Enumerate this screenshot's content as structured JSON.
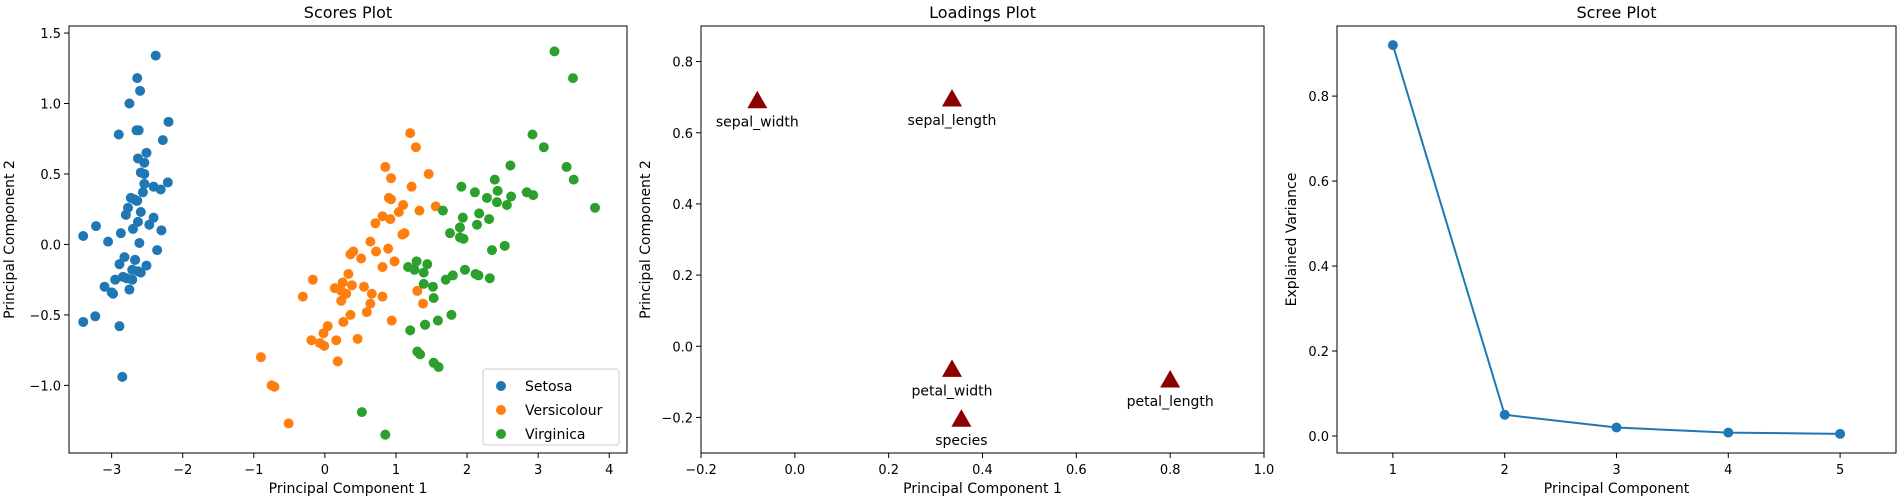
{
  "chart_data": [
    {
      "type": "scatter",
      "title": "Scores Plot",
      "xlabel": "Principal Component 1",
      "ylabel": "Principal Component 2",
      "xlim": [
        -3.6,
        4.25
      ],
      "ylim": [
        -1.48,
        1.55
      ],
      "xticks": [
        -3,
        -2,
        -1,
        0,
        1,
        2,
        3,
        4
      ],
      "xtick_labels": [
        "−3",
        "−2",
        "−1",
        "0",
        "1",
        "2",
        "3",
        "4"
      ],
      "yticks": [
        -1.0,
        -0.5,
        0.0,
        0.5,
        1.0,
        1.5
      ],
      "ytick_labels": [
        "−1.0",
        "−0.5",
        "0.0",
        "0.5",
        "1.0",
        "1.5"
      ],
      "legend_position": "bottom-right",
      "series": [
        {
          "name": "Setosa",
          "color": "#1f77b4",
          "points": [
            [
              -2.68,
              0.32
            ],
            [
              -2.71,
              -0.18
            ],
            [
              -2.89,
              -0.14
            ],
            [
              -2.75,
              -0.32
            ],
            [
              -2.73,
              0.33
            ],
            [
              -2.28,
              0.74
            ],
            [
              -2.82,
              -0.09
            ],
            [
              -2.63,
              0.16
            ],
            [
              -2.89,
              -0.58
            ],
            [
              -2.67,
              -0.11
            ],
            [
              -2.51,
              0.65
            ],
            [
              -2.61,
              0.01
            ],
            [
              -2.79,
              -0.24
            ],
            [
              -3.23,
              -0.51
            ],
            [
              -2.64,
              1.18
            ],
            [
              -2.38,
              1.34
            ],
            [
              -2.62,
              0.81
            ],
            [
              -2.65,
              0.31
            ],
            [
              -2.2,
              0.87
            ],
            [
              -2.59,
              0.51
            ],
            [
              -2.31,
              0.39
            ],
            [
              -2.54,
              0.43
            ],
            [
              -3.22,
              0.13
            ],
            [
              -2.3,
              0.1
            ],
            [
              -2.36,
              -0.04
            ],
            [
              -2.51,
              -0.15
            ],
            [
              -2.47,
              0.14
            ],
            [
              -2.56,
              0.37
            ],
            [
              -2.64,
              0.31
            ],
            [
              -2.63,
              -0.19
            ],
            [
              -2.59,
              -0.2
            ],
            [
              -2.41,
              0.41
            ],
            [
              -2.65,
              0.81
            ],
            [
              -2.6,
              1.09
            ],
            [
              -2.67,
              -0.11
            ],
            [
              -2.87,
              0.08
            ],
            [
              -2.63,
              0.61
            ],
            [
              -2.8,
              0.21
            ],
            [
              -2.98,
              -0.35
            ],
            [
              -2.59,
              0.23
            ],
            [
              -2.77,
              0.26
            ],
            [
              -2.85,
              -0.94
            ],
            [
              -3.0,
              -0.34
            ],
            [
              -2.41,
              0.19
            ],
            [
              -2.21,
              0.44
            ],
            [
              -2.71,
              -0.25
            ],
            [
              -2.54,
              0.5
            ],
            [
              -2.84,
              -0.23
            ],
            [
              -2.54,
              0.58
            ],
            [
              -2.7,
              0.11
            ],
            [
              -3.4,
              -0.55
            ],
            [
              -3.4,
              0.06
            ],
            [
              -2.9,
              0.78
            ],
            [
              -2.75,
              1.0
            ],
            [
              -3.05,
              0.02
            ],
            [
              -3.1,
              -0.3
            ],
            [
              -2.95,
              -0.25
            ]
          ]
        },
        {
          "name": "Versicolour",
          "color": "#ff7f0e",
          "points": [
            [
              1.28,
              0.69
            ],
            [
              0.93,
              0.32
            ],
            [
              1.46,
              0.5
            ],
            [
              0.18,
              -0.83
            ],
            [
              1.09,
              0.07
            ],
            [
              0.64,
              -0.42
            ],
            [
              1.1,
              0.28
            ],
            [
              -0.75,
              -1.0
            ],
            [
              1.04,
              0.23
            ],
            [
              -0.01,
              -0.72
            ],
            [
              -0.51,
              -1.27
            ],
            [
              0.51,
              -0.1
            ],
            [
              0.26,
              -0.55
            ],
            [
              0.98,
              -0.12
            ],
            [
              -0.17,
              -0.25
            ],
            [
              0.93,
              0.47
            ],
            [
              0.66,
              -0.35
            ],
            [
              0.23,
              -0.33
            ],
            [
              0.94,
              -0.54
            ],
            [
              0.04,
              -0.58
            ],
            [
              1.12,
              0.08
            ],
            [
              0.36,
              -0.07
            ],
            [
              1.3,
              -0.33
            ],
            [
              0.92,
              0.18
            ],
            [
              0.71,
              0.15
            ],
            [
              0.9,
              0.33
            ],
            [
              1.33,
              0.24
            ],
            [
              1.56,
              0.27
            ],
            [
              0.81,
              -0.16
            ],
            [
              -0.31,
              -0.37
            ],
            [
              -0.07,
              -0.7
            ],
            [
              -0.19,
              -0.68
            ],
            [
              0.14,
              -0.31
            ],
            [
              1.38,
              -0.42
            ],
            [
              0.59,
              -0.48
            ],
            [
              0.81,
              0.2
            ],
            [
              1.22,
              0.41
            ],
            [
              0.81,
              -0.37
            ],
            [
              0.25,
              -0.27
            ],
            [
              0.16,
              -0.68
            ],
            [
              0.46,
              -0.67
            ],
            [
              0.89,
              -0.03
            ],
            [
              0.23,
              -0.4
            ],
            [
              -0.71,
              -1.01
            ],
            [
              0.36,
              -0.5
            ],
            [
              0.33,
              -0.21
            ],
            [
              0.38,
              -0.29
            ],
            [
              0.64,
              0.02
            ],
            [
              -0.9,
              -0.8
            ],
            [
              0.3,
              -0.35
            ],
            [
              1.2,
              0.79
            ],
            [
              0.85,
              0.55
            ],
            [
              0.4,
              -0.05
            ],
            [
              -0.02,
              -0.63
            ],
            [
              0.55,
              -0.3
            ],
            [
              0.72,
              -0.05
            ]
          ]
        },
        {
          "name": "Virginica",
          "color": "#2ca02c",
          "points": [
            [
              2.53,
              -0.01
            ],
            [
              1.41,
              -0.57
            ],
            [
              2.62,
              0.34
            ],
            [
              1.97,
              -0.18
            ],
            [
              2.35,
              -0.04
            ],
            [
              3.4,
              0.55
            ],
            [
              0.52,
              -1.19
            ],
            [
              2.93,
              0.35
            ],
            [
              2.32,
              -0.24
            ],
            [
              2.92,
              0.78
            ],
            [
              1.66,
              0.24
            ],
            [
              1.8,
              -0.22
            ],
            [
              2.17,
              0.22
            ],
            [
              1.34,
              -0.78
            ],
            [
              1.59,
              -0.54
            ],
            [
              1.9,
              0.12
            ],
            [
              1.95,
              0.04
            ],
            [
              3.49,
              1.18
            ],
            [
              3.8,
              0.26
            ],
            [
              1.3,
              -0.76
            ],
            [
              2.43,
              0.38
            ],
            [
              1.2,
              -0.61
            ],
            [
              3.5,
              0.46
            ],
            [
              1.39,
              -0.2
            ],
            [
              2.28,
              0.33
            ],
            [
              2.61,
              0.56
            ],
            [
              1.26,
              -0.18
            ],
            [
              1.29,
              -0.12
            ],
            [
              2.12,
              -0.21
            ],
            [
              2.39,
              0.46
            ],
            [
              2.84,
              0.37
            ],
            [
              3.23,
              1.37
            ],
            [
              2.16,
              -0.22
            ],
            [
              1.44,
              -0.14
            ],
            [
              1.78,
              -0.5
            ],
            [
              3.08,
              0.69
            ],
            [
              2.14,
              0.14
            ],
            [
              1.9,
              0.05
            ],
            [
              1.17,
              -0.16
            ],
            [
              2.11,
              0.37
            ],
            [
              2.31,
              0.18
            ],
            [
              1.92,
              0.41
            ],
            [
              1.41,
              -0.57
            ],
            [
              2.56,
              0.28
            ],
            [
              2.42,
              0.3
            ],
            [
              1.94,
              0.19
            ],
            [
              1.53,
              -0.38
            ],
            [
              1.76,
              0.08
            ],
            [
              1.9,
              0.12
            ],
            [
              1.39,
              -0.28
            ],
            [
              0.85,
              -1.35
            ],
            [
              1.52,
              -0.3
            ],
            [
              1.6,
              -0.87
            ],
            [
              1.53,
              -0.84
            ],
            [
              1.7,
              -0.25
            ]
          ]
        }
      ]
    },
    {
      "type": "scatter",
      "title": "Loadings Plot",
      "xlabel": "Principal Component 1",
      "ylabel": "Principal Component 2",
      "xlim": [
        -0.2,
        1.0
      ],
      "ylim": [
        -0.3,
        0.9
      ],
      "xticks": [
        -0.2,
        0.0,
        0.2,
        0.4,
        0.6,
        0.8,
        1.0
      ],
      "xtick_labels": [
        "−0.2",
        "0.0",
        "0.2",
        "0.4",
        "0.6",
        "0.8",
        "1.0"
      ],
      "yticks": [
        -0.2,
        0.0,
        0.2,
        0.4,
        0.6,
        0.8
      ],
      "ytick_labels": [
        "−0.2",
        "0.0",
        "0.2",
        "0.4",
        "0.6",
        "0.8"
      ],
      "marker": "triangle",
      "color": "#8b0000",
      "points": [
        {
          "label": "sepal_width",
          "x": -0.08,
          "y": 0.69
        },
        {
          "label": "sepal_length",
          "x": 0.335,
          "y": 0.695
        },
        {
          "label": "petal_width",
          "x": 0.335,
          "y": -0.065
        },
        {
          "label": "petal_length",
          "x": 0.8,
          "y": -0.095
        },
        {
          "label": "species",
          "x": 0.355,
          "y": -0.205
        }
      ]
    },
    {
      "type": "line",
      "title": "Scree Plot",
      "xlabel": "Principal Component",
      "ylabel": "Explained Variance",
      "xlim": [
        0.5,
        5.5
      ],
      "ylim": [
        -0.04,
        0.965
      ],
      "xticks": [
        1,
        2,
        3,
        4,
        5
      ],
      "xtick_labels": [
        "1",
        "2",
        "3",
        "4",
        "5"
      ],
      "yticks": [
        0.0,
        0.2,
        0.4,
        0.6,
        0.8
      ],
      "ytick_labels": [
        "0.0",
        "0.2",
        "0.4",
        "0.6",
        "0.8"
      ],
      "color": "#1f77b4",
      "x": [
        1,
        2,
        3,
        4,
        5
      ],
      "values": [
        0.92,
        0.05,
        0.02,
        0.008,
        0.005
      ]
    }
  ]
}
